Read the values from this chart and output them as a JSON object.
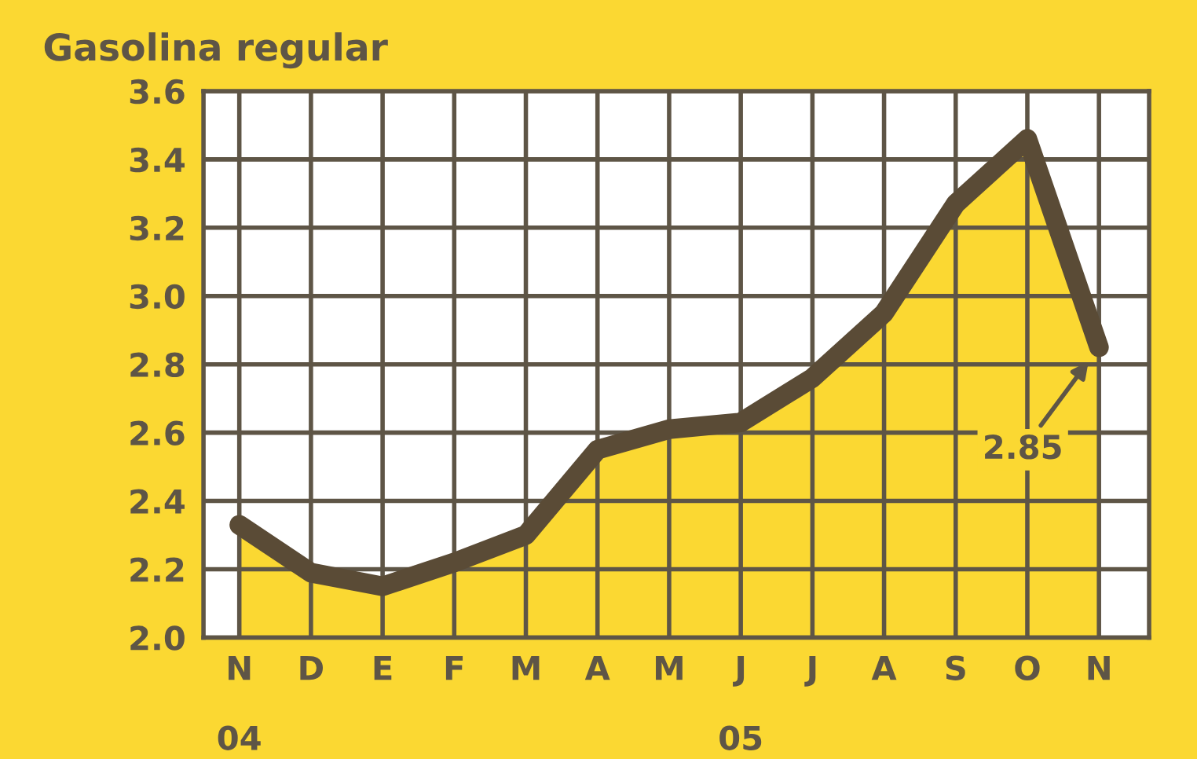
{
  "chart_data": {
    "type": "area",
    "title": "Gasolina regular",
    "categories": [
      "N",
      "D",
      "E",
      "F",
      "M",
      "A",
      "M",
      "J",
      "J",
      "A",
      "S",
      "O",
      "N"
    ],
    "series": [
      {
        "color": "#5a4b36",
        "values": [
          2.33,
          2.19,
          2.15,
          2.22,
          2.3,
          2.55,
          2.61,
          2.63,
          2.76,
          2.95,
          3.27,
          3.46,
          2.85
        ],
        "value_labels": [
          null,
          null,
          null,
          null,
          null,
          null,
          null,
          null,
          null,
          null,
          null,
          null,
          "2.85"
        ]
      }
    ],
    "ylim": [
      2.0,
      3.6
    ],
    "yticks": [
      {
        "value": 2,
        "label": "2.0"
      },
      2.2,
      2.4,
      2.6,
      2.8,
      {
        "value": 3,
        "label": "3.0"
      },
      3.2,
      3.4,
      3.6
    ],
    "grid": true,
    "annotations": [
      "04",
      "05"
    ]
  }
}
